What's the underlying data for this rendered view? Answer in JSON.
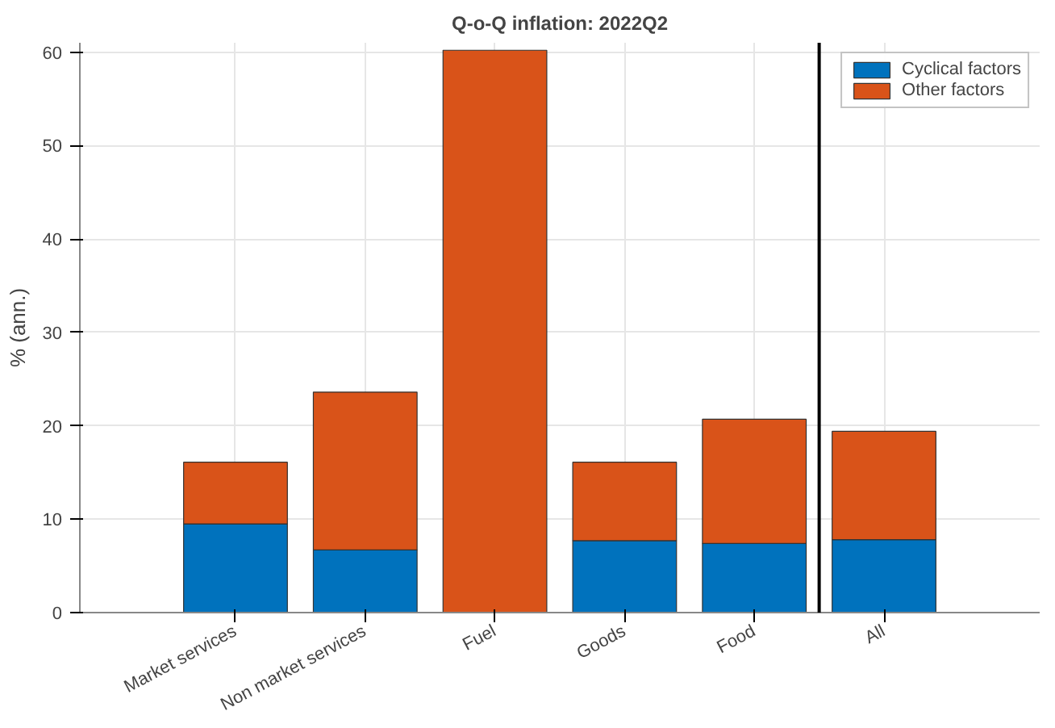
{
  "chart_data": {
    "type": "bar",
    "title": "Q-o-Q inflation: 2022Q2",
    "ylabel": "% (ann.)",
    "categories": [
      "Market services",
      "Non market services",
      "Fuel",
      "Goods",
      "Food",
      "All"
    ],
    "stacked": true,
    "series": [
      {
        "name": "Cyclical factors",
        "color": "#0072bd",
        "values": [
          9.5,
          6.7,
          0,
          7.7,
          7.4,
          7.8
        ]
      },
      {
        "name": "Other factors",
        "color": "#d95319",
        "values": [
          6.6,
          16.9,
          60.2,
          8.4,
          13.3,
          11.6
        ]
      }
    ],
    "ylim": [
      0,
      61
    ],
    "yticks": [
      0,
      10,
      20,
      30,
      40,
      50,
      60
    ],
    "grid": true,
    "legend": "top right",
    "ref_lines": [
      {
        "axis": "x",
        "value": "All",
        "color": "#000000"
      }
    ]
  }
}
